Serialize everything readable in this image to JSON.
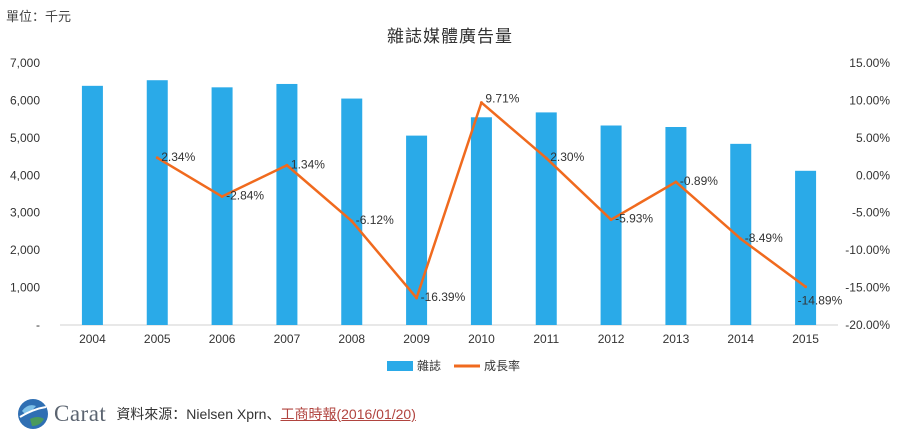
{
  "unit_label": "單位：千元",
  "chart_data": {
    "type": "bar",
    "title": "雜誌媒體廣告量",
    "categories": [
      "2004",
      "2005",
      "2006",
      "2007",
      "2008",
      "2009",
      "2010",
      "2011",
      "2012",
      "2013",
      "2014",
      "2015"
    ],
    "series": [
      {
        "name": "雜誌",
        "type": "bar",
        "axis": "left",
        "color": "#2aaae8",
        "values": [
          6390,
          6540,
          6350,
          6440,
          6050,
          5060,
          5550,
          5680,
          5330,
          5290,
          4840,
          4120
        ]
      },
      {
        "name": "成長率",
        "type": "line",
        "axis": "right",
        "color": "#f06a1e",
        "values": [
          null,
          2.34,
          -2.84,
          1.34,
          -6.12,
          -16.39,
          9.71,
          2.3,
          -5.93,
          -0.89,
          -8.49,
          -14.89
        ],
        "labels": [
          null,
          "2.34%",
          "-2.84%",
          "1.34%",
          "-6.12%",
          "-16.39%",
          "9.71%",
          "2.30%",
          "-5.93%",
          "-0.89%",
          "-8.49%",
          "-14.89%"
        ]
      }
    ],
    "y_left": {
      "ylim": [
        0,
        7000
      ],
      "ticks": [
        0,
        1000,
        2000,
        3000,
        4000,
        5000,
        6000,
        7000
      ],
      "tick_labels": [
        "-",
        "1,000",
        "2,000",
        "3,000",
        "4,000",
        "5,000",
        "6,000",
        "7,000"
      ]
    },
    "y_right": {
      "ylim": [
        -20,
        15
      ],
      "ticks": [
        15,
        10,
        5,
        0,
        -5,
        -10,
        -15,
        -20
      ],
      "tick_labels": [
        "15.00%",
        "10.00%",
        "5.00%",
        "0.00%",
        "-5.00%",
        "-10.00%",
        "-15.00%",
        "-20.00%"
      ]
    },
    "grid": false,
    "legend_position": "bottom"
  },
  "footer": {
    "logo_text": "Carat",
    "source_prefix": "資料來源：Nielsen Xprn、",
    "source_link": "工商時報(2016/01/20)"
  }
}
